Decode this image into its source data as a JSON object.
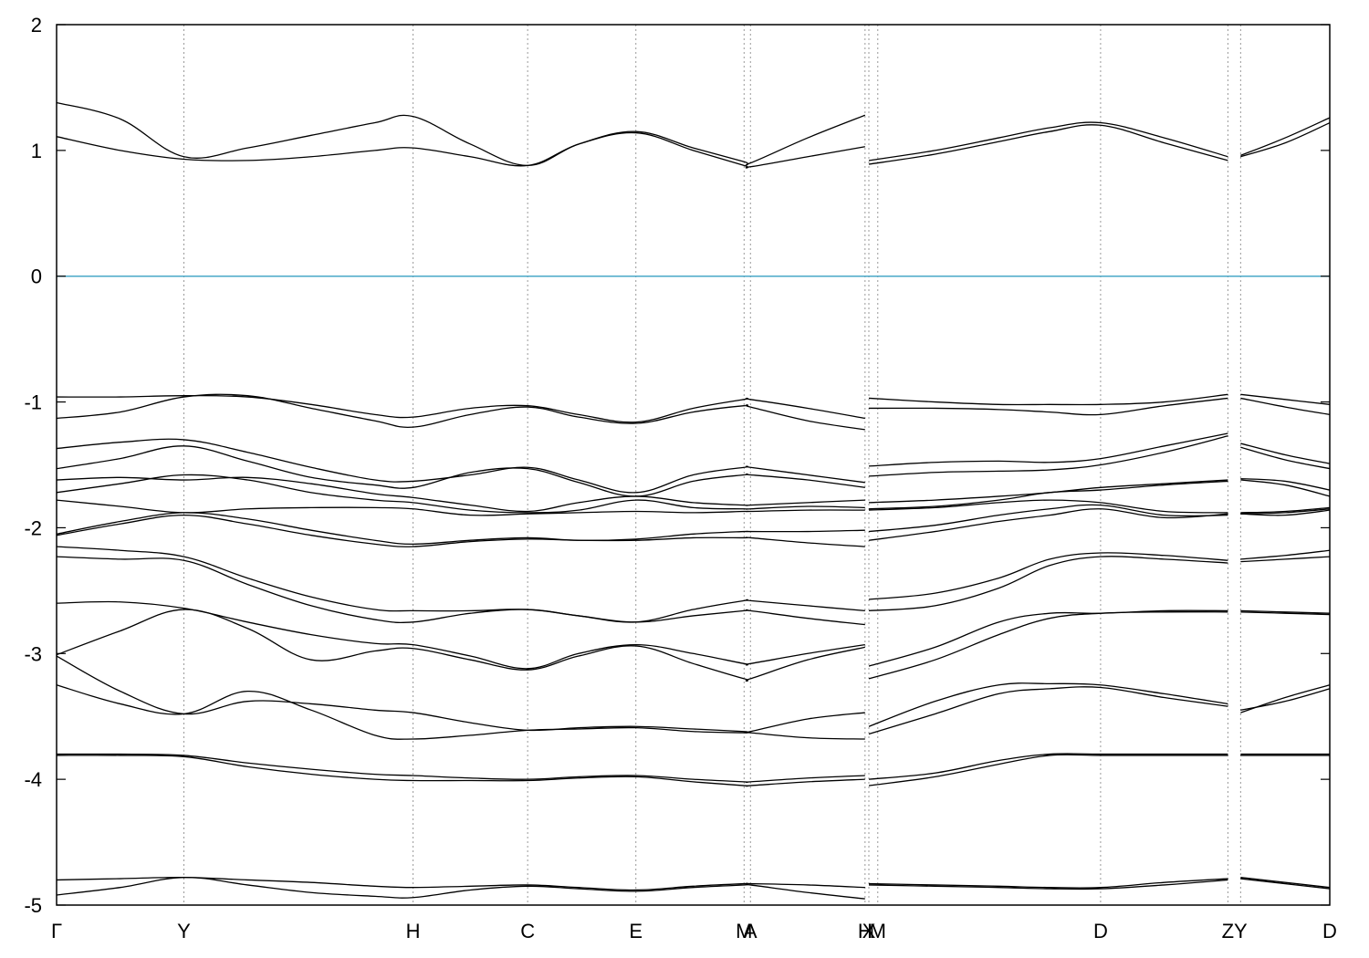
{
  "chart_data": {
    "type": "line",
    "title": "",
    "xlabel": "",
    "ylabel": "",
    "ylim": [
      -5,
      2
    ],
    "yticks": [
      -5,
      -4,
      -3,
      -2,
      -1,
      0,
      1,
      2
    ],
    "ytick_labels": [
      "-5",
      "-4",
      "-3",
      "-2",
      "-1",
      "0",
      "1",
      "2"
    ],
    "grid": "vertical dotted lines at high-symmetry points",
    "legend": "none",
    "fermi_level": {
      "value": 0,
      "color": "#4aa8c8"
    },
    "band_color": "#000000",
    "kpoints": [
      {
        "label": "Γ",
        "x": 0.0
      },
      {
        "label": "Y",
        "x": 1.0
      },
      {
        "label": "H",
        "x": 2.8
      },
      {
        "label": "C",
        "x": 3.7
      },
      {
        "label": "E",
        "x": 4.55
      },
      {
        "label": "M",
        "x": 5.4
      },
      {
        "label": "A",
        "x": 5.45
      },
      {
        "label": "H",
        "x": 6.35
      },
      {
        "label": "X",
        "x": 6.38
      },
      {
        "label": "M",
        "x": 6.45
      },
      {
        "label": "D",
        "x": 8.2
      },
      {
        "label": "Z",
        "x": 9.2
      },
      {
        "label": "Y",
        "x": 9.3
      },
      {
        "label": "D",
        "x": 10.0
      }
    ],
    "xlim": [
      0,
      10.0
    ],
    "segments": [
      {
        "x": [
          0,
          0.5,
          1.0,
          1.5,
          2.0,
          2.5,
          2.8,
          3.25,
          3.7,
          4.1,
          4.55,
          5.0,
          5.4,
          5.45,
          5.9,
          6.35
        ],
        "bands": [
          [
            1.38,
            1.25,
            0.95,
            1.02,
            1.12,
            1.22,
            1.27,
            1.05,
            0.88,
            1.05,
            1.15,
            1.02,
            0.91,
            0.9,
            1.1,
            1.28
          ],
          [
            1.11,
            1.0,
            0.93,
            0.92,
            0.95,
            1.0,
            1.02,
            0.95,
            0.88,
            1.05,
            1.14,
            1.0,
            0.88,
            0.87,
            0.95,
            1.03
          ],
          [
            -0.96,
            -0.96,
            -0.95,
            -0.96,
            -1.02,
            -1.1,
            -1.12,
            -1.05,
            -1.03,
            -1.1,
            -1.16,
            -1.05,
            -0.98,
            -0.98,
            -1.05,
            -1.13
          ],
          [
            -1.13,
            -1.08,
            -0.96,
            -0.95,
            -1.05,
            -1.15,
            -1.2,
            -1.1,
            -1.04,
            -1.12,
            -1.17,
            -1.08,
            -1.03,
            -1.04,
            -1.15,
            -1.22
          ],
          [
            -1.37,
            -1.32,
            -1.3,
            -1.4,
            -1.52,
            -1.62,
            -1.63,
            -1.58,
            -1.52,
            -1.62,
            -1.72,
            -1.58,
            -1.52,
            -1.52,
            -1.58,
            -1.64
          ],
          [
            -1.53,
            -1.45,
            -1.35,
            -1.47,
            -1.6,
            -1.66,
            -1.68,
            -1.56,
            -1.53,
            -1.64,
            -1.75,
            -1.63,
            -1.58,
            -1.58,
            -1.62,
            -1.68
          ],
          [
            -1.62,
            -1.6,
            -1.62,
            -1.6,
            -1.65,
            -1.73,
            -1.76,
            -1.82,
            -1.87,
            -1.8,
            -1.75,
            -1.8,
            -1.82,
            -1.82,
            -1.8,
            -1.78
          ],
          [
            -1.72,
            -1.65,
            -1.58,
            -1.62,
            -1.72,
            -1.78,
            -1.8,
            -1.86,
            -1.88,
            -1.86,
            -1.78,
            -1.84,
            -1.85,
            -1.85,
            -1.83,
            -1.84
          ],
          [
            -1.78,
            -1.83,
            -1.88,
            -1.85,
            -1.84,
            -1.84,
            -1.85,
            -1.9,
            -1.89,
            -1.88,
            -1.87,
            -1.88,
            -1.87,
            -1.87,
            -1.86,
            -1.86
          ],
          [
            -2.05,
            -1.95,
            -1.88,
            -1.93,
            -2.02,
            -2.1,
            -2.13,
            -2.1,
            -2.08,
            -2.1,
            -2.09,
            -2.05,
            -2.03,
            -2.03,
            -2.03,
            -2.02
          ],
          [
            -2.06,
            -1.97,
            -1.9,
            -1.97,
            -2.06,
            -2.13,
            -2.15,
            -2.11,
            -2.09,
            -2.1,
            -2.1,
            -2.08,
            -2.08,
            -2.08,
            -2.12,
            -2.15
          ],
          [
            -2.15,
            -2.18,
            -2.23,
            -2.4,
            -2.55,
            -2.65,
            -2.66,
            -2.66,
            -2.65,
            -2.7,
            -2.75,
            -2.65,
            -2.58,
            -2.58,
            -2.62,
            -2.66
          ],
          [
            -2.23,
            -2.25,
            -2.26,
            -2.45,
            -2.62,
            -2.73,
            -2.75,
            -2.68,
            -2.65,
            -2.7,
            -2.75,
            -2.7,
            -2.66,
            -2.66,
            -2.72,
            -2.77
          ],
          [
            -2.6,
            -2.59,
            -2.64,
            -2.75,
            -2.85,
            -2.92,
            -2.93,
            -3.02,
            -3.12,
            -3.0,
            -2.93,
            -3.0,
            -3.08,
            -3.08,
            -3.0,
            -2.93
          ],
          [
            -3.01,
            -2.82,
            -2.65,
            -2.8,
            -3.05,
            -2.98,
            -2.96,
            -3.05,
            -3.13,
            -3.02,
            -2.94,
            -3.08,
            -3.2,
            -3.2,
            -3.05,
            -2.95
          ],
          [
            -3.02,
            -3.3,
            -3.48,
            -3.38,
            -3.4,
            -3.45,
            -3.47,
            -3.55,
            -3.61,
            -3.59,
            -3.58,
            -3.6,
            -3.62,
            -3.62,
            -3.52,
            -3.47
          ],
          [
            -3.25,
            -3.4,
            -3.48,
            -3.3,
            -3.45,
            -3.65,
            -3.68,
            -3.65,
            -3.61,
            -3.6,
            -3.59,
            -3.62,
            -3.63,
            -3.63,
            -3.67,
            -3.68
          ],
          [
            -3.8,
            -3.8,
            -3.81,
            -3.87,
            -3.92,
            -3.96,
            -3.97,
            -3.99,
            -4.0,
            -3.98,
            -3.97,
            -4.0,
            -4.02,
            -4.02,
            -3.99,
            -3.97
          ],
          [
            -3.81,
            -3.81,
            -3.82,
            -3.9,
            -3.96,
            -4.0,
            -4.01,
            -4.01,
            -4.01,
            -3.99,
            -3.98,
            -4.02,
            -4.05,
            -4.05,
            -4.02,
            -4.0
          ],
          [
            -4.8,
            -4.79,
            -4.78,
            -4.8,
            -4.82,
            -4.85,
            -4.86,
            -4.85,
            -4.84,
            -4.86,
            -4.88,
            -4.85,
            -4.83,
            -4.83,
            -4.84,
            -4.86
          ],
          [
            -4.92,
            -4.86,
            -4.78,
            -4.84,
            -4.9,
            -4.93,
            -4.94,
            -4.88,
            -4.85,
            -4.87,
            -4.89,
            -4.86,
            -4.84,
            -4.84,
            -4.9,
            -4.95
          ]
        ]
      },
      {
        "x": [
          6.38,
          6.9,
          7.4,
          7.8,
          8.2,
          8.7,
          9.2
        ],
        "bands": [
          [
            0.92,
            1.0,
            1.1,
            1.18,
            1.22,
            1.1,
            0.95
          ],
          [
            0.89,
            0.97,
            1.07,
            1.15,
            1.2,
            1.06,
            0.92
          ],
          [
            -0.97,
            -1.0,
            -1.02,
            -1.02,
            -1.02,
            -1.0,
            -0.94
          ],
          [
            -1.05,
            -1.05,
            -1.06,
            -1.08,
            -1.1,
            -1.03,
            -0.97
          ],
          [
            -1.51,
            -1.48,
            -1.47,
            -1.48,
            -1.45,
            -1.35,
            -1.25
          ],
          [
            -1.59,
            -1.56,
            -1.55,
            -1.54,
            -1.5,
            -1.4,
            -1.27
          ],
          [
            -1.8,
            -1.78,
            -1.75,
            -1.72,
            -1.68,
            -1.65,
            -1.62
          ],
          [
            -1.85,
            -1.83,
            -1.78,
            -1.72,
            -1.7,
            -1.66,
            -1.63
          ],
          [
            -1.86,
            -1.84,
            -1.8,
            -1.78,
            -1.8,
            -1.87,
            -1.88
          ],
          [
            -2.03,
            -1.98,
            -1.9,
            -1.85,
            -1.82,
            -1.9,
            -1.9
          ],
          [
            -2.1,
            -2.03,
            -1.95,
            -1.9,
            -1.85,
            -1.92,
            -1.89
          ],
          [
            -2.57,
            -2.52,
            -2.4,
            -2.25,
            -2.2,
            -2.22,
            -2.26
          ],
          [
            -2.66,
            -2.62,
            -2.48,
            -2.3,
            -2.23,
            -2.25,
            -2.28
          ],
          [
            -3.1,
            -2.95,
            -2.75,
            -2.68,
            -2.68,
            -2.66,
            -2.66
          ],
          [
            -3.2,
            -3.05,
            -2.85,
            -2.72,
            -2.68,
            -2.67,
            -2.67
          ],
          [
            -3.58,
            -3.38,
            -3.25,
            -3.24,
            -3.25,
            -3.32,
            -3.4
          ],
          [
            -3.64,
            -3.48,
            -3.32,
            -3.28,
            -3.27,
            -3.35,
            -3.42
          ],
          [
            -4.0,
            -3.95,
            -3.85,
            -3.8,
            -3.8,
            -3.8,
            -3.8
          ],
          [
            -4.05,
            -3.98,
            -3.88,
            -3.81,
            -3.81,
            -3.81,
            -3.81
          ],
          [
            -4.83,
            -4.84,
            -4.85,
            -4.86,
            -4.86,
            -4.82,
            -4.79
          ],
          [
            -4.84,
            -4.85,
            -4.86,
            -4.87,
            -4.87,
            -4.84,
            -4.8
          ]
        ]
      },
      {
        "x": [
          9.3,
          9.65,
          10.0
        ],
        "bands": [
          [
            0.96,
            1.1,
            1.26
          ],
          [
            0.95,
            1.06,
            1.22
          ],
          [
            -0.94,
            -0.98,
            -1.02
          ],
          [
            -0.97,
            -1.04,
            -1.1
          ],
          [
            -1.33,
            -1.42,
            -1.49
          ],
          [
            -1.36,
            -1.46,
            -1.53
          ],
          [
            -1.61,
            -1.63,
            -1.7
          ],
          [
            -1.62,
            -1.66,
            -1.75
          ],
          [
            -1.88,
            -1.87,
            -1.84
          ],
          [
            -1.89,
            -1.88,
            -1.85
          ],
          [
            -1.89,
            -1.9,
            -1.86
          ],
          [
            -2.25,
            -2.22,
            -2.18
          ],
          [
            -2.27,
            -2.25,
            -2.23
          ],
          [
            -2.66,
            -2.67,
            -2.68
          ],
          [
            -2.67,
            -2.68,
            -2.69
          ],
          [
            -3.47,
            -3.35,
            -3.25
          ],
          [
            -3.45,
            -3.38,
            -3.28
          ],
          [
            -3.8,
            -3.8,
            -3.8
          ],
          [
            -3.81,
            -3.81,
            -3.81
          ],
          [
            -4.78,
            -4.82,
            -4.86
          ],
          [
            -4.79,
            -4.83,
            -4.87
          ]
        ]
      }
    ]
  }
}
